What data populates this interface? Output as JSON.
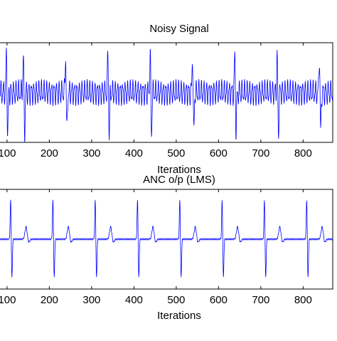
{
  "figure": {
    "background": "#ffffff",
    "subplots": [
      {
        "id": "noisy",
        "title": "Noisy Signal",
        "xlabel": "Iterations",
        "ylabel": ""
      },
      {
        "id": "anc",
        "title": "ANC o/p (LMS)",
        "xlabel": "Iterations",
        "ylabel": ""
      }
    ]
  },
  "chart_data": [
    {
      "type": "line",
      "title": "Noisy Signal",
      "xlabel": "Iterations",
      "ylabel": "",
      "xlim": [
        80,
        870
      ],
      "ylim": [
        -1.2,
        1.2
      ],
      "xticks": [
        100,
        200,
        300,
        400,
        500,
        600,
        700,
        800
      ],
      "xtick_labels": [
        "100",
        "200",
        "300",
        "400",
        "500",
        "600",
        "700",
        "800"
      ],
      "grid": false,
      "color": "#0000ff",
      "signal": {
        "beat_positions": [
          140,
          240,
          340,
          440,
          540,
          640,
          740,
          840,
          100
        ],
        "r_peak": 0.9,
        "s_trough": -1.0,
        "noise_amplitude": 0.22,
        "noise_period": 6
      }
    },
    {
      "type": "line",
      "title": "ANC o/p (LMS)",
      "xlabel": "Iterations",
      "ylabel": "",
      "xlim": [
        80,
        870
      ],
      "ylim": [
        -1.2,
        1.2
      ],
      "xticks": [
        100,
        200,
        300,
        400,
        500,
        600,
        700,
        800
      ],
      "xtick_labels": [
        "100",
        "200",
        "300",
        "400",
        "500",
        "600",
        "700",
        "800"
      ],
      "grid": false,
      "color": "#0000ff",
      "signal": {
        "beat_positions": [
          110,
          210,
          310,
          410,
          510,
          610,
          710,
          810
        ],
        "r_peak": 0.95,
        "s_trough": -0.95,
        "t_wave_offset": 35,
        "t_wave_height": 0.3,
        "noise_amplitude": 0.02
      }
    }
  ]
}
